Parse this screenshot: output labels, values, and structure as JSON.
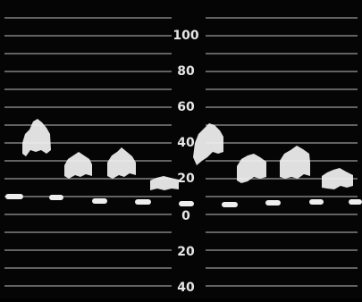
{
  "scale": {
    "labels": [
      "100",
      "80",
      "60",
      "40",
      "20",
      "0",
      "20",
      "40"
    ]
  }
}
